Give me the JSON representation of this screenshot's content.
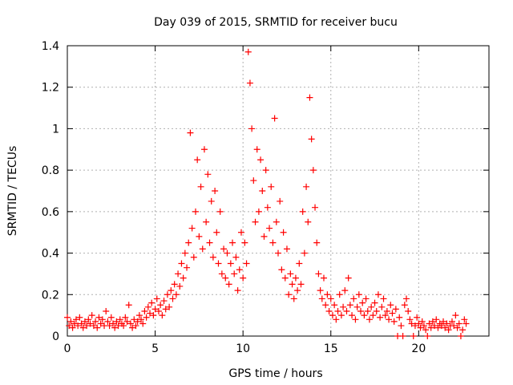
{
  "chart_data": {
    "type": "scatter",
    "title": "Day 039 of 2015, SRMTID for receiver bucu",
    "xlabel": "GPS time / hours",
    "ylabel": "SRMTID / TECUs",
    "xlim": [
      0,
      24
    ],
    "ylim": [
      0,
      1.4
    ],
    "xticks": [
      0,
      5,
      10,
      15,
      20
    ],
    "xtick_labels": [
      "0",
      "5",
      "10",
      "15",
      "20"
    ],
    "yticks": [
      0,
      0.2,
      0.4,
      0.6,
      0.8,
      1,
      1.2,
      1.4
    ],
    "ytick_labels": [
      "0",
      "0.2",
      "0.4",
      "0.6",
      "0.8",
      "1",
      "1.2",
      "1.4"
    ],
    "grid": true,
    "marker": "plus",
    "color": "#ff0000",
    "series": [
      {
        "name": "SRMTID",
        "points": [
          [
            0.0,
            0.09
          ],
          [
            0.1,
            0.05
          ],
          [
            0.2,
            0.07
          ],
          [
            0.3,
            0.04
          ],
          [
            0.4,
            0.06
          ],
          [
            0.5,
            0.08
          ],
          [
            0.6,
            0.05
          ],
          [
            0.7,
            0.09
          ],
          [
            0.8,
            0.06
          ],
          [
            0.9,
            0.04
          ],
          [
            1.0,
            0.07
          ],
          [
            1.1,
            0.05
          ],
          [
            1.2,
            0.08
          ],
          [
            1.3,
            0.06
          ],
          [
            1.4,
            0.1
          ],
          [
            1.5,
            0.05
          ],
          [
            1.6,
            0.07
          ],
          [
            1.7,
            0.04
          ],
          [
            1.8,
            0.09
          ],
          [
            1.9,
            0.06
          ],
          [
            2.0,
            0.08
          ],
          [
            2.1,
            0.05
          ],
          [
            2.2,
            0.12
          ],
          [
            2.3,
            0.07
          ],
          [
            2.4,
            0.05
          ],
          [
            2.5,
            0.09
          ],
          [
            2.6,
            0.06
          ],
          [
            2.7,
            0.04
          ],
          [
            2.8,
            0.07
          ],
          [
            2.9,
            0.05
          ],
          [
            3.0,
            0.08
          ],
          [
            3.1,
            0.06
          ],
          [
            3.2,
            0.05
          ],
          [
            3.3,
            0.09
          ],
          [
            3.4,
            0.07
          ],
          [
            3.5,
            0.15
          ],
          [
            3.6,
            0.06
          ],
          [
            3.7,
            0.04
          ],
          [
            3.8,
            0.08
          ],
          [
            3.9,
            0.05
          ],
          [
            4.0,
            0.07
          ],
          [
            4.1,
            0.1
          ],
          [
            4.2,
            0.08
          ],
          [
            4.3,
            0.06
          ],
          [
            4.4,
            0.12
          ],
          [
            4.5,
            0.09
          ],
          [
            4.6,
            0.14
          ],
          [
            4.7,
            0.11
          ],
          [
            4.8,
            0.16
          ],
          [
            4.9,
            0.1
          ],
          [
            5.0,
            0.13
          ],
          [
            5.1,
            0.18
          ],
          [
            5.2,
            0.12
          ],
          [
            5.3,
            0.15
          ],
          [
            5.4,
            0.1
          ],
          [
            5.5,
            0.17
          ],
          [
            5.6,
            0.13
          ],
          [
            5.7,
            0.2
          ],
          [
            5.8,
            0.14
          ],
          [
            5.9,
            0.22
          ],
          [
            6.0,
            0.18
          ],
          [
            6.1,
            0.25
          ],
          [
            6.2,
            0.2
          ],
          [
            6.3,
            0.3
          ],
          [
            6.4,
            0.24
          ],
          [
            6.5,
            0.35
          ],
          [
            6.6,
            0.28
          ],
          [
            6.7,
            0.4
          ],
          [
            6.8,
            0.33
          ],
          [
            6.9,
            0.45
          ],
          [
            7.0,
            0.98
          ],
          [
            7.1,
            0.52
          ],
          [
            7.2,
            0.38
          ],
          [
            7.3,
            0.6
          ],
          [
            7.4,
            0.85
          ],
          [
            7.5,
            0.48
          ],
          [
            7.6,
            0.72
          ],
          [
            7.7,
            0.42
          ],
          [
            7.8,
            0.9
          ],
          [
            7.9,
            0.55
          ],
          [
            8.0,
            0.78
          ],
          [
            8.1,
            0.45
          ],
          [
            8.2,
            0.65
          ],
          [
            8.3,
            0.38
          ],
          [
            8.4,
            0.7
          ],
          [
            8.5,
            0.5
          ],
          [
            8.6,
            0.35
          ],
          [
            8.7,
            0.6
          ],
          [
            8.8,
            0.3
          ],
          [
            8.9,
            0.42
          ],
          [
            9.0,
            0.28
          ],
          [
            9.1,
            0.4
          ],
          [
            9.2,
            0.25
          ],
          [
            9.3,
            0.35
          ],
          [
            9.4,
            0.45
          ],
          [
            9.5,
            0.3
          ],
          [
            9.6,
            0.38
          ],
          [
            9.7,
            0.22
          ],
          [
            9.8,
            0.32
          ],
          [
            9.9,
            0.5
          ],
          [
            10.0,
            0.28
          ],
          [
            10.1,
            0.45
          ],
          [
            10.2,
            0.35
          ],
          [
            10.3,
            1.37
          ],
          [
            10.4,
            1.22
          ],
          [
            10.5,
            1.0
          ],
          [
            10.6,
            0.75
          ],
          [
            10.7,
            0.55
          ],
          [
            10.8,
            0.9
          ],
          [
            10.9,
            0.6
          ],
          [
            11.0,
            0.85
          ],
          [
            11.1,
            0.7
          ],
          [
            11.2,
            0.48
          ],
          [
            11.3,
            0.8
          ],
          [
            11.4,
            0.62
          ],
          [
            11.5,
            0.52
          ],
          [
            11.6,
            0.72
          ],
          [
            11.7,
            0.45
          ],
          [
            11.8,
            1.05
          ],
          [
            11.9,
            0.55
          ],
          [
            12.0,
            0.4
          ],
          [
            12.1,
            0.65
          ],
          [
            12.2,
            0.32
          ],
          [
            12.3,
            0.5
          ],
          [
            12.4,
            0.28
          ],
          [
            12.5,
            0.42
          ],
          [
            12.6,
            0.2
          ],
          [
            12.7,
            0.3
          ],
          [
            12.8,
            0.25
          ],
          [
            12.9,
            0.18
          ],
          [
            13.0,
            0.28
          ],
          [
            13.1,
            0.22
          ],
          [
            13.2,
            0.35
          ],
          [
            13.3,
            0.25
          ],
          [
            13.4,
            0.6
          ],
          [
            13.5,
            0.4
          ],
          [
            13.6,
            0.72
          ],
          [
            13.7,
            0.55
          ],
          [
            13.8,
            1.15
          ],
          [
            13.9,
            0.95
          ],
          [
            14.0,
            0.8
          ],
          [
            14.1,
            0.62
          ],
          [
            14.2,
            0.45
          ],
          [
            14.3,
            0.3
          ],
          [
            14.4,
            0.22
          ],
          [
            14.5,
            0.18
          ],
          [
            14.6,
            0.28
          ],
          [
            14.7,
            0.15
          ],
          [
            14.8,
            0.2
          ],
          [
            14.9,
            0.12
          ],
          [
            15.0,
            0.18
          ],
          [
            15.1,
            0.1
          ],
          [
            15.2,
            0.15
          ],
          [
            15.3,
            0.08
          ],
          [
            15.4,
            0.12
          ],
          [
            15.5,
            0.2
          ],
          [
            15.6,
            0.1
          ],
          [
            15.7,
            0.14
          ],
          [
            15.8,
            0.22
          ],
          [
            15.9,
            0.12
          ],
          [
            16.0,
            0.28
          ],
          [
            16.1,
            0.15
          ],
          [
            16.2,
            0.1
          ],
          [
            16.3,
            0.18
          ],
          [
            16.4,
            0.08
          ],
          [
            16.5,
            0.14
          ],
          [
            16.6,
            0.2
          ],
          [
            16.7,
            0.12
          ],
          [
            16.8,
            0.16
          ],
          [
            16.9,
            0.1
          ],
          [
            17.0,
            0.18
          ],
          [
            17.1,
            0.12
          ],
          [
            17.2,
            0.08
          ],
          [
            17.3,
            0.14
          ],
          [
            17.4,
            0.1
          ],
          [
            17.5,
            0.16
          ],
          [
            17.6,
            0.12
          ],
          [
            17.7,
            0.2
          ],
          [
            17.8,
            0.09
          ],
          [
            17.9,
            0.14
          ],
          [
            18.0,
            0.18
          ],
          [
            18.1,
            0.1
          ],
          [
            18.2,
            0.12
          ],
          [
            18.3,
            0.08
          ],
          [
            18.4,
            0.15
          ],
          [
            18.5,
            0.11
          ],
          [
            18.6,
            0.07
          ],
          [
            18.7,
            0.13
          ],
          [
            18.8,
            0.0
          ],
          [
            18.9,
            0.09
          ],
          [
            19.0,
            0.05
          ],
          [
            19.1,
            0.0
          ],
          [
            19.2,
            0.15
          ],
          [
            19.3,
            0.18
          ],
          [
            19.4,
            0.12
          ],
          [
            19.5,
            0.08
          ],
          [
            19.6,
            0.06
          ],
          [
            19.7,
            0.0
          ],
          [
            19.8,
            0.05
          ],
          [
            19.9,
            0.09
          ],
          [
            20.0,
            0.06
          ],
          [
            20.1,
            0.04
          ],
          [
            20.2,
            0.07
          ],
          [
            20.3,
            0.05
          ],
          [
            20.4,
            0.03
          ],
          [
            20.5,
            0.0
          ],
          [
            20.6,
            0.06
          ],
          [
            20.7,
            0.04
          ],
          [
            20.8,
            0.07
          ],
          [
            20.9,
            0.05
          ],
          [
            21.0,
            0.08
          ],
          [
            21.1,
            0.04
          ],
          [
            21.2,
            0.06
          ],
          [
            21.3,
            0.05
          ],
          [
            21.4,
            0.07
          ],
          [
            21.5,
            0.04
          ],
          [
            21.6,
            0.06
          ],
          [
            21.7,
            0.03
          ],
          [
            21.8,
            0.05
          ],
          [
            21.9,
            0.07
          ],
          [
            22.0,
            0.05
          ],
          [
            22.1,
            0.1
          ],
          [
            22.2,
            0.04
          ],
          [
            22.3,
            0.06
          ],
          [
            22.4,
            0.0
          ],
          [
            22.5,
            0.03
          ],
          [
            22.6,
            0.08
          ],
          [
            22.7,
            0.06
          ]
        ]
      }
    ]
  }
}
